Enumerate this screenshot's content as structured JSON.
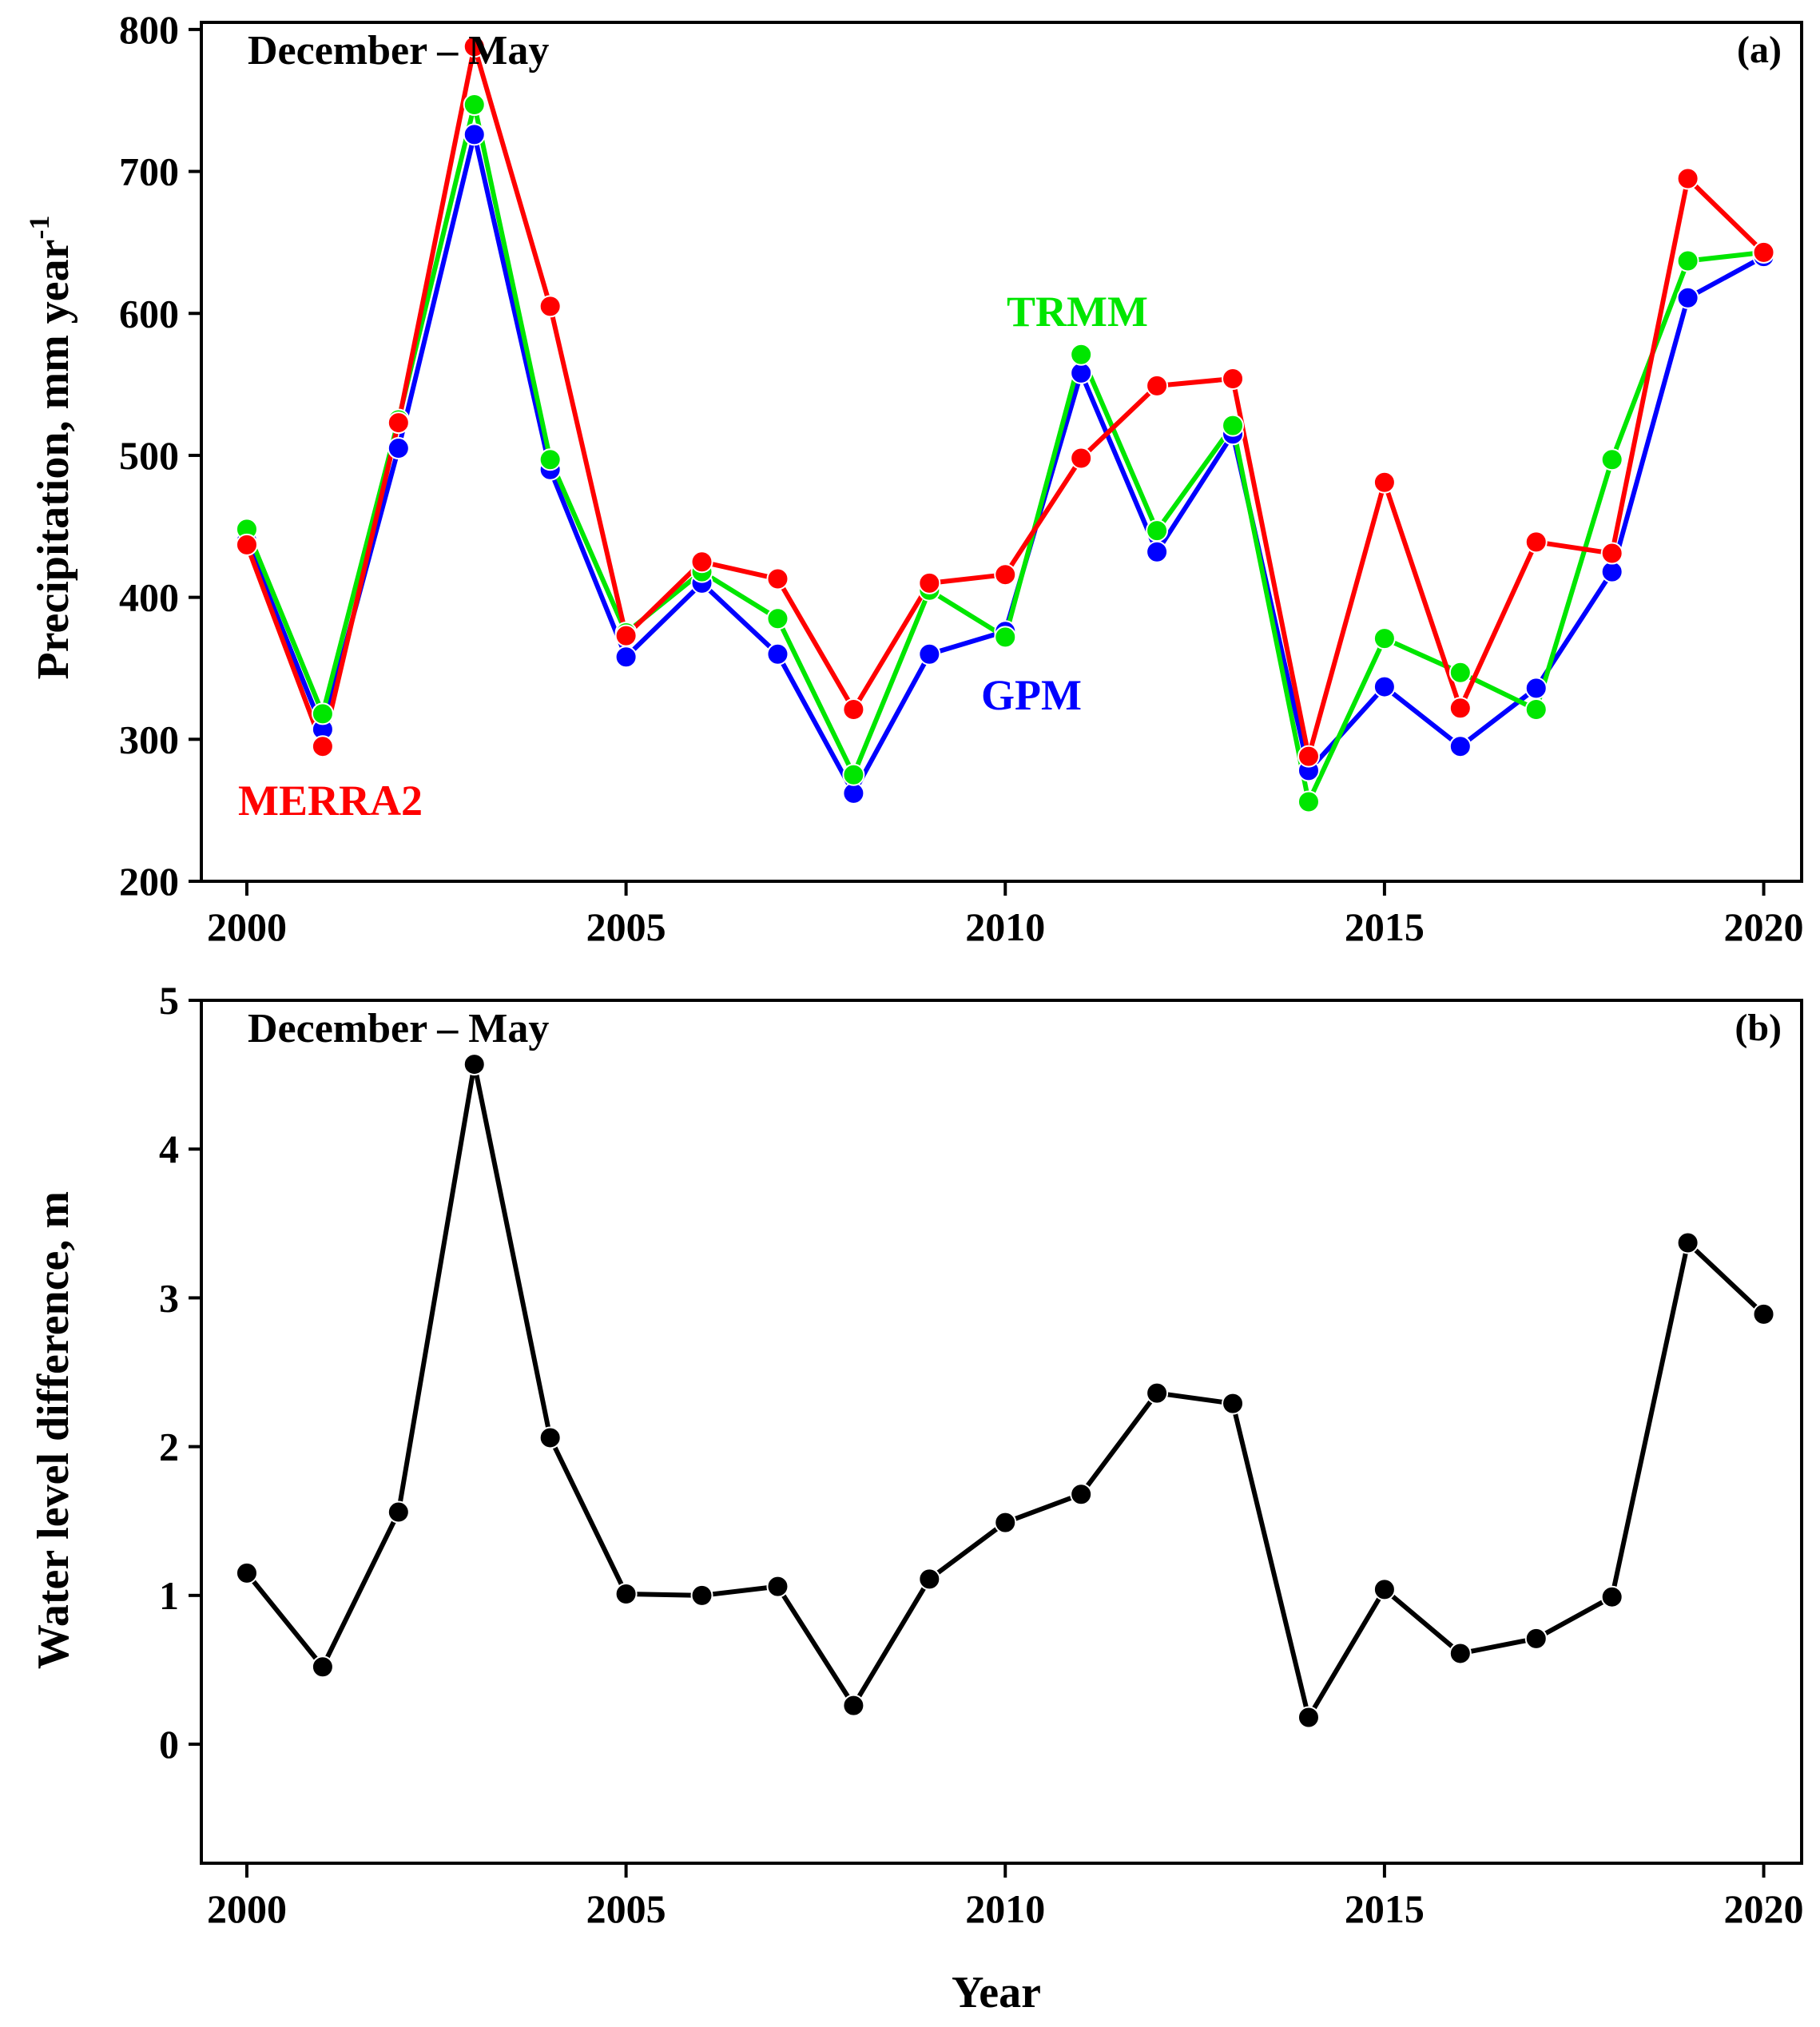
{
  "chart_data": [
    {
      "type": "line",
      "panel_tag": "(a)",
      "title": "December – May",
      "ylabel": "Precipitation,  mm year",
      "ylabel_superscript": "-1",
      "xlabel": "",
      "xlim": [
        1999.4,
        2020.5
      ],
      "ylim": [
        200,
        805
      ],
      "xticks": [
        2000,
        2005,
        2010,
        2015,
        2020
      ],
      "yticks": [
        200,
        300,
        400,
        500,
        600,
        700,
        800
      ],
      "grid": false,
      "x": [
        2000,
        2001,
        2002,
        2003,
        2004,
        2005,
        2006,
        2007,
        2008,
        2009,
        2010,
        2011,
        2012,
        2013,
        2014,
        2015,
        2016,
        2017,
        2018,
        2019,
        2020
      ],
      "series": [
        {
          "name": "GPM",
          "color": "#0000ff",
          "values": [
            440,
            307,
            505,
            726,
            490,
            358,
            410,
            360,
            262,
            360,
            376,
            558,
            432,
            515,
            278,
            337,
            295,
            336,
            418,
            611,
            640
          ]
        },
        {
          "name": "TRMM",
          "color": "#00e600",
          "values": [
            448,
            318,
            525,
            747,
            497,
            375,
            418,
            385,
            275,
            405,
            372,
            571,
            447,
            521,
            256,
            371,
            347,
            321,
            497,
            637,
            643
          ]
        },
        {
          "name": "MERRA2",
          "color": "#ff0000",
          "values": [
            437,
            295,
            523,
            788,
            605,
            373,
            425,
            413,
            321,
            410,
            416,
            498,
            549,
            554,
            288,
            481,
            322,
            439,
            431,
            695,
            643
          ]
        }
      ]
    },
    {
      "type": "line",
      "panel_tag": "(b)",
      "title": "December – May",
      "ylabel": "Water  level  difference,  m",
      "xlabel": "Year",
      "xlim": [
        1999.4,
        2020.5
      ],
      "ylim": [
        -0.8,
        5
      ],
      "xticks": [
        2000,
        2005,
        2010,
        2015,
        2020
      ],
      "yticks": [
        0,
        1,
        2,
        3,
        4,
        5
      ],
      "grid": false,
      "x": [
        2000,
        2001,
        2002,
        2003,
        2004,
        2005,
        2006,
        2007,
        2008,
        2009,
        2010,
        2011,
        2012,
        2013,
        2014,
        2015,
        2016,
        2017,
        2018,
        2019,
        2020
      ],
      "series": [
        {
          "name": "Water level difference",
          "color": "#000000",
          "values": [
            1.15,
            0.52,
            1.56,
            4.57,
            2.06,
            1.01,
            1.0,
            1.06,
            0.26,
            1.11,
            1.49,
            1.68,
            2.36,
            2.29,
            0.18,
            1.04,
            0.61,
            0.71,
            0.99,
            3.37,
            2.89
          ]
        }
      ]
    }
  ]
}
